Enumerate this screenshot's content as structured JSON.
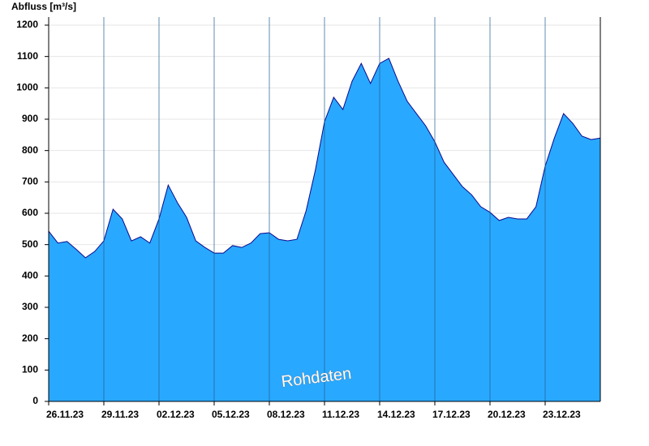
{
  "chart_data": {
    "type": "area",
    "ylabel": "Abfluss [m³/s]",
    "annotation": "Rohdaten",
    "x": [
      0,
      0.5,
      1,
      1.5,
      2,
      2.5,
      3,
      3.5,
      4,
      4.5,
      5,
      5.5,
      6,
      6.5,
      7,
      7.5,
      8,
      8.5,
      9,
      9.5,
      10,
      10.5,
      11,
      11.5,
      12,
      12.5,
      13,
      13.5,
      14,
      14.5,
      15,
      15.5,
      16,
      16.5,
      17,
      17.5,
      18,
      18.5,
      19,
      19.5,
      20,
      20.5,
      21,
      21.5,
      22,
      22.5,
      23,
      23.5,
      24,
      24.5,
      25,
      25.5,
      26,
      26.5,
      27,
      27.5,
      28,
      28.5,
      29,
      29.5,
      30
    ],
    "series": [
      {
        "name": "Abfluss",
        "color": "#29a8ff",
        "line_color": "#0a0a8c",
        "values": [
          543,
          505,
          510,
          485,
          458,
          478,
          512,
          613,
          582,
          512,
          525,
          505,
          582,
          690,
          634,
          587,
          512,
          491,
          473,
          473,
          497,
          491,
          505,
          535,
          538,
          517,
          512,
          517,
          608,
          737,
          892,
          970,
          931,
          1021,
          1078,
          1014,
          1078,
          1094,
          1021,
          957,
          918,
          879,
          828,
          763,
          724,
          685,
          659,
          621,
          603,
          577,
          587,
          582,
          582,
          621,
          750,
          840,
          918,
          887,
          846,
          835,
          840
        ]
      }
    ],
    "xlim": [
      0,
      30
    ],
    "xticks": [
      {
        "value": 0,
        "label": "26.11.23"
      },
      {
        "value": 3,
        "label": "29.11.23"
      },
      {
        "value": 6,
        "label": "02.12.23"
      },
      {
        "value": 9,
        "label": "05.12.23"
      },
      {
        "value": 12,
        "label": "08.12.23"
      },
      {
        "value": 15,
        "label": "11.12.23"
      },
      {
        "value": 18,
        "label": "14.12.23"
      },
      {
        "value": 21,
        "label": "17.12.23"
      },
      {
        "value": 24,
        "label": "20.12.23"
      },
      {
        "value": 27,
        "label": "23.12.23"
      }
    ],
    "ylim": [
      0,
      1200
    ],
    "yticks": [
      0,
      100,
      200,
      300,
      400,
      500,
      600,
      700,
      800,
      900,
      1000,
      1100,
      1200
    ],
    "grid": true
  }
}
